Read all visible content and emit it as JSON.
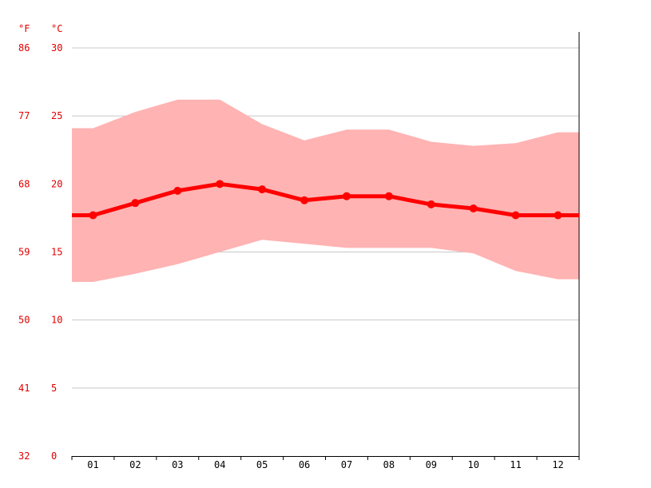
{
  "chart_data": {
    "type": "line",
    "units": {
      "fahrenheit": "°F",
      "celsius": "°C"
    },
    "categories": [
      "01",
      "02",
      "03",
      "04",
      "05",
      "06",
      "07",
      "08",
      "09",
      "10",
      "11",
      "12"
    ],
    "y_ticks_c": [
      0,
      5,
      10,
      15,
      20,
      25,
      30
    ],
    "y_ticks_f": [
      32,
      41,
      50,
      59,
      68,
      77,
      86
    ],
    "ylim": [
      0,
      30
    ],
    "grid": true,
    "series": [
      {
        "role": "mean",
        "values": [
          17.7,
          18.6,
          19.5,
          20.0,
          19.6,
          18.8,
          19.1,
          19.1,
          18.5,
          18.2,
          17.7,
          17.7
        ]
      },
      {
        "role": "max",
        "values": [
          24.1,
          25.3,
          26.2,
          26.2,
          24.4,
          23.2,
          24.0,
          24.0,
          23.1,
          22.8,
          23.0,
          23.8
        ]
      },
      {
        "role": "min",
        "values": [
          12.8,
          13.4,
          14.1,
          15.0,
          15.9,
          15.6,
          15.3,
          15.3,
          15.3,
          14.9,
          13.6,
          13.0
        ]
      }
    ],
    "colors": {
      "mean": "#ff0000",
      "range": "#ffb3b3",
      "label": "#e00000",
      "grid": "#c8c8c8",
      "axis": "#000000"
    }
  }
}
